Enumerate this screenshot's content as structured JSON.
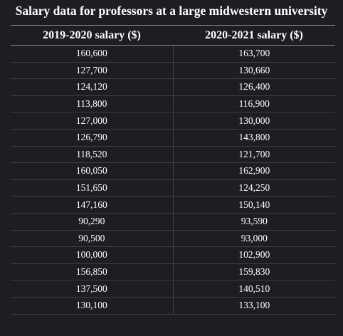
{
  "table": {
    "caption": "Salary data for professors at a large midwestern university",
    "headers": [
      "2019-2020 salary ($)",
      "2020-2021 salary ($)"
    ],
    "rows": [
      [
        "160,600",
        "163,700"
      ],
      [
        "127,700",
        "130,660"
      ],
      [
        "124,120",
        "126,400"
      ],
      [
        "113,800",
        "116,900"
      ],
      [
        "127,000",
        "130,000"
      ],
      [
        "126,790",
        "143,800"
      ],
      [
        "118,520",
        "121,700"
      ],
      [
        "160,050",
        "162,900"
      ],
      [
        "151,650",
        "124,250"
      ],
      [
        "147,160",
        "150,140"
      ],
      [
        "90,290",
        "93,590"
      ],
      [
        "90,500",
        "93,000"
      ],
      [
        "100,000",
        "102,900"
      ],
      [
        "156,850",
        "159,830"
      ],
      [
        "137,500",
        "140,510"
      ],
      [
        "130,100",
        "133,100"
      ]
    ]
  },
  "colors": {
    "background": "#1d1e22",
    "text": "#ffffff",
    "header_rule": "#8a8b8f",
    "grid_line": "#3e3f44"
  }
}
